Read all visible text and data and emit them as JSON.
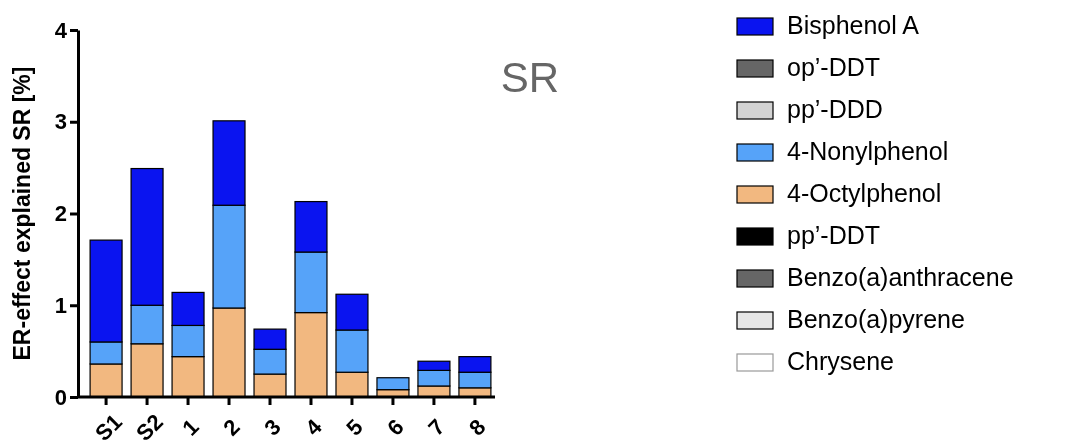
{
  "chart_data": {
    "type": "bar",
    "title": "SR",
    "ylabel": "ER-effect explained SR [%]",
    "stacked": true,
    "legend": "right",
    "grid": false,
    "categories": [
      "S1",
      "S2",
      "1",
      "2",
      "3",
      "4",
      "5",
      "6",
      "7",
      "8"
    ],
    "ylim": [
      0,
      4
    ],
    "yticks": [
      0,
      1,
      2,
      3,
      4
    ],
    "series": [
      {
        "name": "Chrysene",
        "color": "#ffffff",
        "values": [
          0,
          0,
          0,
          0,
          0,
          0,
          0,
          0,
          0,
          0
        ]
      },
      {
        "name": "Benzo(a)pyrene",
        "color": "#e6e6e6",
        "values": [
          0,
          0,
          0,
          0,
          0,
          0,
          0,
          0,
          0,
          0
        ]
      },
      {
        "name": "Benzo(a)anthracene",
        "color": "#666666",
        "values": [
          0,
          0,
          0,
          0,
          0,
          0,
          0,
          0,
          0,
          0
        ]
      },
      {
        "name": "pp’-DDT",
        "color": "#000000",
        "values": [
          0,
          0,
          0,
          0,
          0,
          0,
          0,
          0,
          0,
          0
        ]
      },
      {
        "name": "4-Octylphenol",
        "color": "#f2b880",
        "values": [
          0.36,
          0.58,
          0.44,
          0.97,
          0.25,
          0.92,
          0.27,
          0.08,
          0.12,
          0.1
        ]
      },
      {
        "name": "4-Nonylphenol",
        "color": "#56a3f9",
        "values": [
          0.24,
          0.42,
          0.34,
          1.12,
          0.27,
          0.66,
          0.46,
          0.13,
          0.17,
          0.17
        ]
      },
      {
        "name": "pp’-DDD",
        "color": "#d3d3d3",
        "values": [
          0,
          0,
          0,
          0,
          0,
          0,
          0,
          0,
          0,
          0
        ]
      },
      {
        "name": "op’-DDT",
        "color": "#666666",
        "values": [
          0,
          0,
          0,
          0,
          0,
          0,
          0,
          0,
          0,
          0
        ]
      },
      {
        "name": "Bisphenol A",
        "color": "#0a14f0",
        "values": [
          1.11,
          1.49,
          0.36,
          0.92,
          0.22,
          0.55,
          0.39,
          0,
          0.1,
          0.17
        ]
      }
    ]
  }
}
